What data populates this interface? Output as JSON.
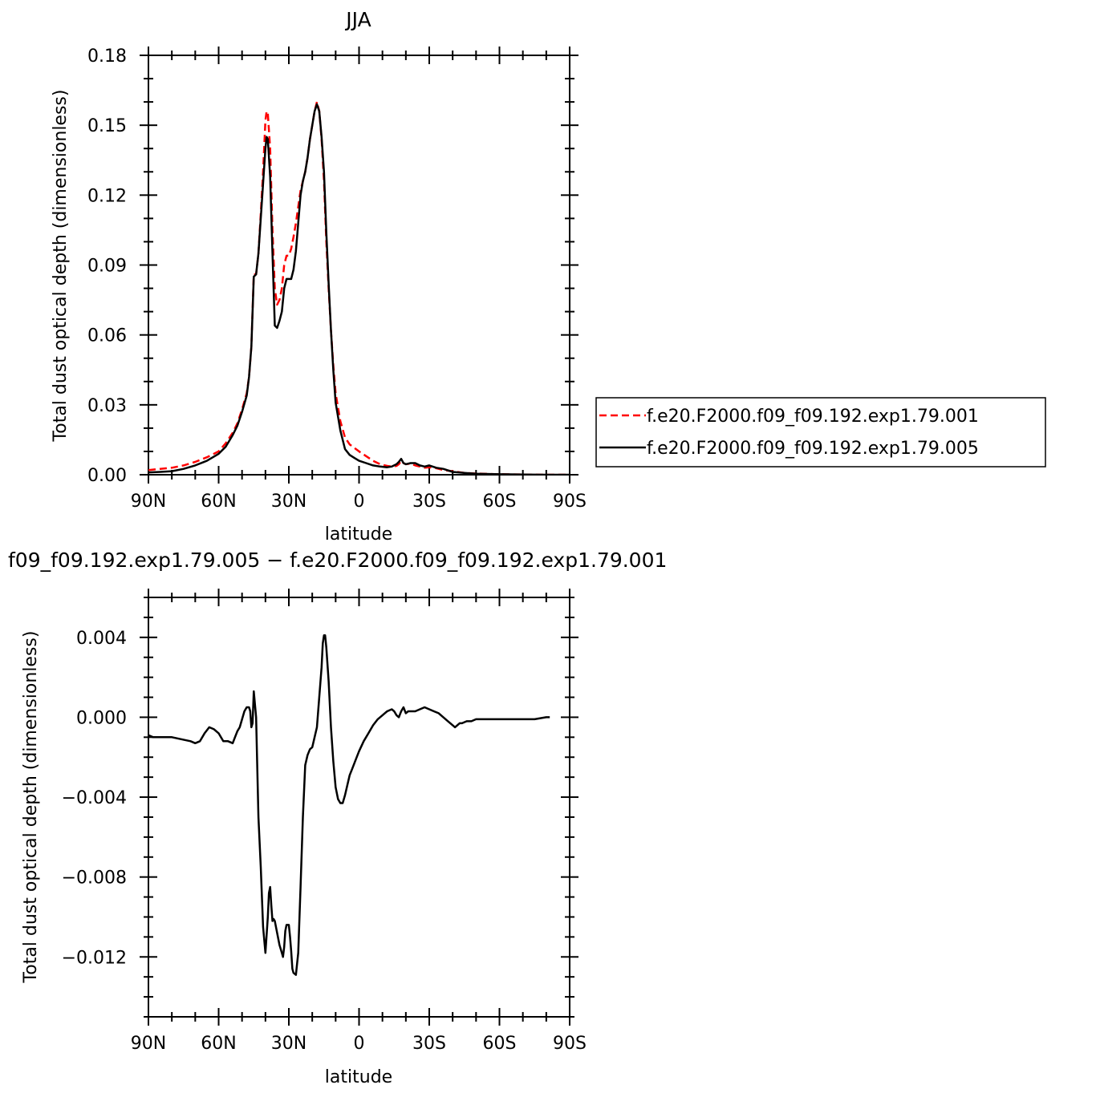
{
  "chart_data": [
    {
      "type": "line",
      "title": "JJA",
      "xlabel": "latitude",
      "ylabel": "Total dust optical depth (dimensionless)",
      "xlim": [
        90,
        -90
      ],
      "ylim": [
        0,
        0.18
      ],
      "xticks": [
        90,
        60,
        30,
        0,
        -30,
        -60,
        -90
      ],
      "xtick_labels": [
        "90N",
        "60N",
        "30N",
        "0",
        "30S",
        "60S",
        "90S"
      ],
      "yticks": [
        0,
        0.03,
        0.06,
        0.09,
        0.12,
        0.15,
        0.18
      ],
      "ytick_labels": [
        "0.00",
        "0.03",
        "0.06",
        "0.09",
        "0.12",
        "0.15",
        "0.18"
      ],
      "legend_position": "right",
      "series": [
        {
          "name": "f.e20.F2000.f09_f09.192.exp1.79.001",
          "color": "#ff0000",
          "style": "dashed",
          "x": [
            90,
            85,
            80,
            75,
            70,
            65,
            60,
            57,
            54,
            52,
            50,
            48,
            47,
            46,
            45,
            44,
            43,
            42,
            41,
            40,
            39.5,
            39,
            38,
            37,
            36,
            35,
            34,
            33,
            32,
            31,
            30,
            29,
            28,
            27,
            26,
            25,
            24,
            23,
            22,
            21,
            20,
            19,
            18,
            17,
            16,
            15,
            14,
            13,
            12,
            11,
            10,
            8,
            6,
            4,
            2,
            0,
            -3,
            -6,
            -9,
            -12,
            -14,
            -16,
            -17,
            -18,
            -19,
            -20,
            -22,
            -24,
            -26,
            -28,
            -30,
            -33,
            -36,
            -40,
            -45,
            -50,
            -60,
            -70,
            -80,
            -90
          ],
          "values": [
            0.002,
            0.0025,
            0.003,
            0.004,
            0.0055,
            0.0075,
            0.01,
            0.0135,
            0.018,
            0.022,
            0.028,
            0.035,
            0.042,
            0.055,
            0.086,
            0.086,
            0.095,
            0.112,
            0.13,
            0.152,
            0.156,
            0.155,
            0.14,
            0.105,
            0.08,
            0.073,
            0.075,
            0.08,
            0.09,
            0.094,
            0.094,
            0.097,
            0.102,
            0.108,
            0.115,
            0.122,
            0.126,
            0.13,
            0.136,
            0.144,
            0.15,
            0.156,
            0.16,
            0.156,
            0.144,
            0.126,
            0.1,
            0.08,
            0.062,
            0.047,
            0.035,
            0.023,
            0.016,
            0.013,
            0.0115,
            0.01,
            0.008,
            0.006,
            0.0045,
            0.0038,
            0.0035,
            0.0038,
            0.0045,
            0.006,
            0.005,
            0.0045,
            0.0048,
            0.004,
            0.0035,
            0.003,
            0.0032,
            0.0028,
            0.002,
            0.0015,
            0.0008,
            0.0005,
            0.0002,
            0.0001,
            0.0,
            0.0
          ]
        },
        {
          "name": "f.e20.F2000.f09_f09.192.exp1.79.005",
          "color": "#000000",
          "style": "solid",
          "x": [
            90,
            85,
            80,
            75,
            70,
            65,
            60,
            57,
            54,
            52,
            50,
            48,
            47,
            46,
            45,
            44,
            43,
            42,
            41,
            40,
            39.5,
            39,
            38,
            37,
            36,
            35,
            34,
            33,
            32,
            31,
            30,
            29,
            28,
            27,
            26,
            25,
            24,
            23,
            22,
            21,
            20,
            19,
            18,
            17,
            16,
            15,
            14,
            13,
            12,
            11,
            10,
            8,
            6,
            4,
            2,
            0,
            -3,
            -6,
            -9,
            -12,
            -14,
            -16,
            -17,
            -18,
            -19,
            -20,
            -22,
            -24,
            -26,
            -28,
            -30,
            -33,
            -36,
            -40,
            -45,
            -50,
            -60,
            -70,
            -80,
            -90
          ],
          "values": [
            0.001,
            0.0012,
            0.0015,
            0.0025,
            0.004,
            0.006,
            0.009,
            0.012,
            0.017,
            0.021,
            0.027,
            0.034,
            0.042,
            0.055,
            0.085,
            0.086,
            0.095,
            0.11,
            0.125,
            0.14,
            0.145,
            0.144,
            0.128,
            0.095,
            0.064,
            0.063,
            0.066,
            0.07,
            0.08,
            0.084,
            0.084,
            0.084,
            0.088,
            0.096,
            0.108,
            0.12,
            0.126,
            0.13,
            0.136,
            0.144,
            0.15,
            0.156,
            0.159,
            0.156,
            0.145,
            0.13,
            0.104,
            0.082,
            0.062,
            0.045,
            0.031,
            0.019,
            0.011,
            0.0085,
            0.0072,
            0.006,
            0.005,
            0.004,
            0.0035,
            0.0032,
            0.0035,
            0.0045,
            0.0055,
            0.0068,
            0.005,
            0.0045,
            0.005,
            0.005,
            0.004,
            0.0035,
            0.004,
            0.003,
            0.0025,
            0.0012,
            0.0008,
            0.0004,
            0.0002,
            0.0001,
            0.0,
            0.0
          ]
        }
      ]
    },
    {
      "type": "line",
      "title": "f09_f09.192.exp1.79.005 − f.e20.F2000.f09_f09.192.exp1.79.001",
      "xlabel": "latitude",
      "ylabel": "Total dust optical depth (dimensionless)",
      "xlim": [
        90,
        -90
      ],
      "ylim": [
        -0.015,
        0.006
      ],
      "xticks": [
        90,
        60,
        30,
        0,
        -30,
        -60,
        -90
      ],
      "xtick_labels": [
        "90N",
        "60N",
        "30N",
        "0",
        "30S",
        "60S",
        "90S"
      ],
      "yticks": [
        -0.012,
        -0.008,
        -0.004,
        0.0,
        0.004
      ],
      "ytick_labels": [
        "−0.012",
        "−0.008",
        "−0.004",
        "0.000",
        "0.004"
      ],
      "series": [
        {
          "color": "#000000",
          "style": "solid",
          "x": [
            90,
            88,
            84,
            80,
            76,
            72,
            70,
            68,
            66,
            64,
            62,
            60,
            58,
            56,
            54,
            53,
            52,
            51,
            50,
            49,
            48,
            47.5,
            47,
            46.5,
            46,
            45.5,
            45,
            44,
            43,
            42,
            41,
            40,
            39,
            38.5,
            38,
            37.5,
            37,
            36.5,
            36,
            35,
            34,
            33,
            32.5,
            32,
            31.5,
            31,
            30.5,
            30,
            29.5,
            29,
            28.5,
            28,
            27,
            26,
            25,
            24,
            23,
            22,
            21,
            20,
            19,
            18,
            17,
            16,
            15.5,
            15,
            14.5,
            14,
            13,
            12,
            11,
            10,
            9,
            8,
            7.5,
            7,
            6,
            5,
            4,
            3,
            2,
            1,
            0,
            -2,
            -4,
            -6,
            -8,
            -10,
            -12,
            -14,
            -15,
            -16,
            -17,
            -18,
            -19,
            -20,
            -21,
            -22,
            -24,
            -26,
            -28,
            -30,
            -32,
            -34,
            -36,
            -38,
            -40,
            -41,
            -42,
            -43,
            -44,
            -46,
            -48,
            -50,
            -55,
            -60,
            -65,
            -70,
            -75,
            -80,
            -81.5
          ],
          "values": [
            -0.0009,
            -0.001,
            -0.001,
            -0.001,
            -0.0011,
            -0.0012,
            -0.0013,
            -0.0012,
            -0.0008,
            -0.0005,
            -0.0006,
            -0.0008,
            -0.0012,
            -0.0012,
            -0.0013,
            -0.001,
            -0.0007,
            -0.0005,
            -0.0001,
            0.0003,
            0.0005,
            0.0005,
            0.0005,
            0.0003,
            -0.0005,
            -0.0003,
            0.0013,
            0.0,
            -0.005,
            -0.0075,
            -0.0105,
            -0.0118,
            -0.01,
            -0.0088,
            -0.0085,
            -0.0094,
            -0.0102,
            -0.0101,
            -0.0102,
            -0.0108,
            -0.0114,
            -0.0118,
            -0.012,
            -0.0115,
            -0.0107,
            -0.0104,
            -0.0104,
            -0.0104,
            -0.011,
            -0.0117,
            -0.0126,
            -0.0128,
            -0.0129,
            -0.0118,
            -0.0085,
            -0.005,
            -0.0024,
            -0.0019,
            -0.0016,
            -0.0015,
            -0.001,
            -0.0005,
            0.001,
            0.0025,
            0.0037,
            0.0041,
            0.0041,
            0.0035,
            0.0018,
            -0.0005,
            -0.0022,
            -0.0035,
            -0.0041,
            -0.0043,
            -0.0043,
            -0.0043,
            -0.0039,
            -0.0034,
            -0.0029,
            -0.0026,
            -0.0023,
            -0.002,
            -0.0017,
            -0.0012,
            -0.0008,
            -0.0004,
            -0.0001,
            0.0001,
            0.0003,
            0.0004,
            0.0003,
            0.0001,
            0.0,
            0.0003,
            0.0005,
            0.0002,
            0.0003,
            0.0003,
            0.0003,
            0.0004,
            0.0005,
            0.0004,
            0.0003,
            0.0002,
            0.0,
            -0.0002,
            -0.0004,
            -0.0005,
            -0.0004,
            -0.0003,
            -0.0003,
            -0.0002,
            -0.0002,
            -0.0001,
            -0.0001,
            -0.0001,
            -0.0001,
            -0.0001,
            -0.0001,
            0.0,
            0.0
          ]
        }
      ]
    }
  ]
}
